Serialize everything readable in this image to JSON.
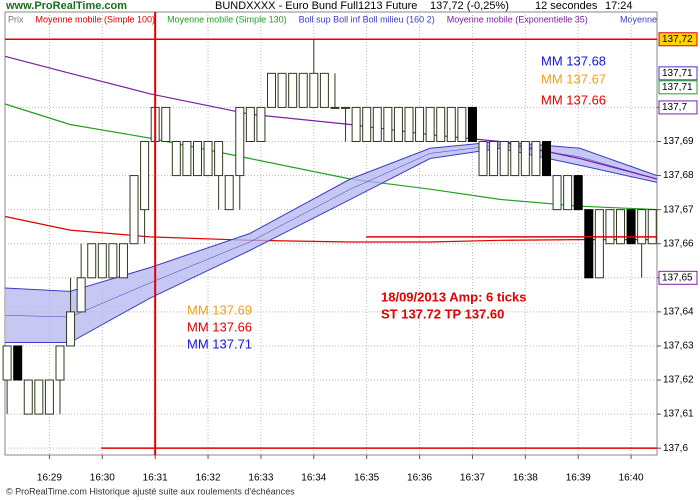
{
  "chart_data": {
    "type": "candlestick",
    "logo": "www.ProRealTime.com",
    "title": "BUNDXXXX - Euro Bund Full1213 Future",
    "price": "137,72 (-0,25%)",
    "interval": "12 secondes",
    "time": "17:24",
    "footer": "© ProRealTime.com Historique ajusté suite aux roulements d'échéances",
    "legend_overflow": "Moyenne",
    "xlim": [
      988.16,
      1000.49
    ],
    "ylim": [
      137.598,
      137.728
    ],
    "grid": true,
    "xticks": [
      {
        "value": 989,
        "label": "16:29"
      },
      {
        "value": 990,
        "label": "16:30"
      },
      {
        "value": 991,
        "label": "16:31"
      },
      {
        "value": 992,
        "label": "16:32"
      },
      {
        "value": 993,
        "label": "16:33"
      },
      {
        "value": 994,
        "label": "16:34"
      },
      {
        "value": 995,
        "label": "16:35"
      },
      {
        "value": 996,
        "label": "16:36"
      },
      {
        "value": 997,
        "label": "16:37"
      },
      {
        "value": 998,
        "label": "16:38"
      },
      {
        "value": 999,
        "label": "16:39"
      },
      {
        "value": 1000,
        "label": "16:40"
      }
    ],
    "yticks": [
      {
        "value": 137.6,
        "label": "137,6"
      },
      {
        "value": 137.61,
        "label": "137,61"
      },
      {
        "value": 137.62,
        "label": "137,62"
      },
      {
        "value": 137.63,
        "label": "137,63"
      },
      {
        "value": 137.64,
        "label": "137,64"
      },
      {
        "value": 137.65,
        "label": "137,65"
      },
      {
        "value": 137.66,
        "label": "137,66"
      },
      {
        "value": 137.67,
        "label": "137,67"
      },
      {
        "value": 137.68,
        "label": "137,68"
      },
      {
        "value": 137.69,
        "label": "137,69"
      },
      {
        "value": 137.7,
        "label": "137,7"
      }
    ],
    "candles": {
      "name": "Prix",
      "color": "#777777",
      "up_color": "#2f3b1f",
      "down_color": "#000000",
      "x": [
        988.2,
        988.4,
        988.6,
        988.8,
        989,
        989.2,
        989.4,
        989.6,
        989.8,
        990,
        990.2,
        990.4,
        990.6,
        990.8,
        991,
        991.2,
        991.4,
        991.6,
        991.8,
        992,
        992.2,
        992.4,
        992.6,
        992.8,
        993,
        993.2,
        993.4,
        993.6,
        993.8,
        994,
        994.2,
        994.4,
        994.6,
        994.8,
        995,
        995.2,
        995.4,
        995.6,
        995.8,
        996,
        996.2,
        996.4,
        996.6,
        996.8,
        997,
        997.2,
        997.4,
        997.6,
        997.8,
        998,
        998.2,
        998.4,
        998.6,
        998.8,
        999,
        999.2,
        999.4,
        999.6,
        999.8,
        1000,
        1000.2,
        1000.4
      ],
      "open": [
        137.62,
        137.63,
        137.61,
        137.61,
        137.61,
        137.62,
        137.63,
        137.64,
        137.65,
        137.65,
        137.65,
        137.65,
        137.66,
        137.67,
        137.69,
        137.69,
        137.68,
        137.68,
        137.68,
        137.68,
        137.68,
        137.67,
        137.68,
        137.69,
        137.69,
        137.7,
        137.7,
        137.7,
        137.7,
        137.7,
        137.7,
        137.7,
        137.7,
        137.69,
        137.69,
        137.69,
        137.69,
        137.69,
        137.69,
        137.69,
        137.69,
        137.69,
        137.69,
        137.69,
        137.7,
        137.68,
        137.68,
        137.68,
        137.68,
        137.68,
        137.68,
        137.69,
        137.67,
        137.67,
        137.68,
        137.67,
        137.65,
        137.66,
        137.66,
        137.67,
        137.66,
        137.66
      ],
      "close": [
        137.63,
        137.62,
        137.62,
        137.62,
        137.62,
        137.63,
        137.64,
        137.65,
        137.66,
        137.66,
        137.66,
        137.66,
        137.68,
        137.69,
        137.7,
        137.7,
        137.69,
        137.69,
        137.69,
        137.69,
        137.69,
        137.68,
        137.7,
        137.7,
        137.7,
        137.71,
        137.71,
        137.71,
        137.71,
        137.71,
        137.71,
        137.7,
        137.7,
        137.7,
        137.7,
        137.7,
        137.7,
        137.7,
        137.7,
        137.7,
        137.7,
        137.7,
        137.7,
        137.7,
        137.69,
        137.69,
        137.69,
        137.69,
        137.69,
        137.69,
        137.69,
        137.68,
        137.68,
        137.68,
        137.67,
        137.65,
        137.67,
        137.67,
        137.67,
        137.66,
        137.67,
        137.67
      ],
      "high": [
        137.63,
        137.63,
        137.62,
        137.62,
        137.62,
        137.63,
        137.65,
        137.66,
        137.66,
        137.66,
        137.66,
        137.66,
        137.68,
        137.69,
        137.7,
        137.7,
        137.69,
        137.69,
        137.69,
        137.69,
        137.69,
        137.68,
        137.7,
        137.7,
        137.7,
        137.71,
        137.71,
        137.71,
        137.71,
        137.72,
        137.71,
        137.71,
        137.7,
        137.7,
        137.7,
        137.7,
        137.7,
        137.7,
        137.7,
        137.7,
        137.7,
        137.7,
        137.7,
        137.7,
        137.7,
        137.69,
        137.69,
        137.69,
        137.69,
        137.69,
        137.69,
        137.69,
        137.68,
        137.68,
        137.68,
        137.67,
        137.67,
        137.67,
        137.67,
        137.67,
        137.67,
        137.67
      ],
      "low": [
        137.61,
        137.62,
        137.61,
        137.61,
        137.61,
        137.61,
        137.63,
        137.64,
        137.65,
        137.65,
        137.65,
        137.65,
        137.66,
        137.66,
        137.67,
        137.69,
        137.68,
        137.68,
        137.68,
        137.68,
        137.67,
        137.67,
        137.67,
        137.69,
        137.69,
        137.7,
        137.7,
        137.7,
        137.7,
        137.7,
        137.7,
        137.7,
        137.69,
        137.69,
        137.69,
        137.69,
        137.69,
        137.69,
        137.69,
        137.69,
        137.69,
        137.69,
        137.69,
        137.69,
        137.69,
        137.68,
        137.68,
        137.68,
        137.68,
        137.68,
        137.68,
        137.68,
        137.67,
        137.67,
        137.67,
        137.65,
        137.65,
        137.66,
        137.66,
        137.66,
        137.65,
        137.66
      ]
    },
    "series": [
      {
        "name": "Moyenne mobile (Simple 100)",
        "color": "#e00000",
        "x": [
          988.16,
          989.39,
          990.9,
          992.79,
          994.69,
          996.2,
          997.52,
          999.03,
          1000.49
        ],
        "values": [
          137.668,
          137.664,
          137.662,
          137.661,
          137.6605,
          137.6605,
          137.661,
          137.6612,
          137.6612
        ]
      },
      {
        "name": "Moyenne mobile (Simple 130)",
        "color": "#22a022",
        "x": [
          988.16,
          989.39,
          990.9,
          992.79,
          994.69,
          996.2,
          997.52,
          999.03,
          1000.49
        ],
        "values": [
          137.701,
          137.695,
          137.691,
          137.685,
          137.679,
          137.676,
          137.673,
          137.671,
          137.67
        ]
      },
      {
        "name": "Boll sup Boll inf Boll milieu (160 2)",
        "color": "#3c3cc8",
        "fill": "#b4b4f0",
        "x": [
          988.16,
          989.39,
          990.9,
          992.79,
          994.69,
          996.2,
          997.52,
          999.03,
          1000.49
        ],
        "upper": [
          137.647,
          137.646,
          137.653,
          137.663,
          137.679,
          137.688,
          137.69,
          137.688,
          137.68
        ],
        "lower": [
          137.631,
          137.631,
          137.644,
          137.658,
          137.673,
          137.685,
          137.688,
          137.683,
          137.678
        ],
        "middle": [
          137.639,
          137.6385,
          137.6485,
          137.6605,
          137.676,
          137.6865,
          137.689,
          137.6855,
          137.679
        ]
      },
      {
        "name": "Moyenne mobile (Exponentielle 35)",
        "color": "#7a1fa0",
        "x": [
          988.16,
          989.39,
          990.9,
          992.79,
          994.69,
          996.2,
          997.52,
          999.03,
          1000.49
        ],
        "values": [
          137.715,
          137.71,
          137.704,
          137.698,
          137.695,
          137.692,
          137.69,
          137.685,
          137.679
        ]
      }
    ],
    "hlines": [
      {
        "y": 137.72,
        "x0": 988.16,
        "x1": 1000.49,
        "color": "#e00000"
      },
      {
        "y": 137.6,
        "x0": 989.98,
        "x1": 1000.49,
        "color": "#e00000"
      },
      {
        "y": 137.662,
        "x0": 994.99,
        "x1": 1000.49,
        "color": "#e00000"
      }
    ],
    "vlines": [
      {
        "x": 991,
        "color": "#e00000"
      }
    ],
    "price_tags": [
      {
        "value": 137.72,
        "label": "137,72",
        "color": "#e00000",
        "fill": "#ffd400"
      },
      {
        "value": 137.71,
        "label": "137,71",
        "color": "#3c3cc8",
        "fill": "#ffffff"
      },
      {
        "value": 137.71,
        "label": "137,71",
        "color": "#22a022",
        "fill": "#ffffff"
      },
      {
        "value": 137.7,
        "label": "137,7",
        "color": "#7a1fa0",
        "fill": "#ffffff"
      },
      {
        "value": 137.65,
        "label": "137,65",
        "color": "#7a1fa0",
        "fill": "#ffffff"
      }
    ],
    "annotations": [
      {
        "text": "MM 137.68",
        "color": "#1414e0"
      },
      {
        "text": "MM 137.67",
        "color": "#f0a020"
      },
      {
        "text": "MM 137.66",
        "color": "#e00000"
      },
      {
        "text": "MM 137.69",
        "color": "#f0a020"
      },
      {
        "text": "MM 137.66",
        "color": "#e00000"
      },
      {
        "text": "MM 137.71",
        "color": "#1414e0"
      },
      {
        "text": "18/09/2013 Amp: 6 ticks",
        "color": "#e00000"
      },
      {
        "text": "ST 137.72 TP 137.60",
        "color": "#e00000"
      }
    ]
  }
}
